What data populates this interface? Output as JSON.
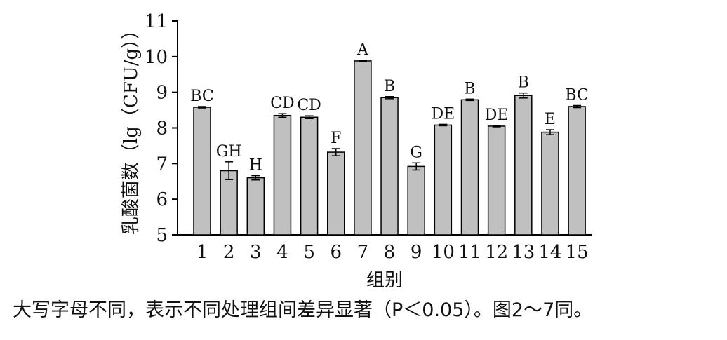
{
  "chart_data": {
    "type": "bar",
    "xlabel": "组别",
    "ylabel": "乳酸菌数（lg（CFU/g））",
    "ylim": [
      5,
      11
    ],
    "yticks": [
      5,
      6,
      7,
      8,
      9,
      10,
      11
    ],
    "categories": [
      "1",
      "2",
      "3",
      "4",
      "5",
      "6",
      "7",
      "8",
      "9",
      "10",
      "11",
      "12",
      "13",
      "14",
      "15"
    ],
    "values": [
      8.58,
      6.8,
      6.6,
      8.35,
      8.3,
      7.32,
      9.88,
      8.85,
      6.92,
      8.08,
      8.79,
      8.05,
      8.91,
      7.88,
      8.6
    ],
    "errors": [
      0.02,
      0.25,
      0.06,
      0.05,
      0.04,
      0.1,
      0.02,
      0.03,
      0.1,
      0.02,
      0.02,
      0.02,
      0.07,
      0.07,
      0.03
    ],
    "significance_labels": [
      "BC",
      "GH",
      "H",
      "CD",
      "CD",
      "F",
      "A",
      "B",
      "G",
      "DE",
      "B",
      "DE",
      "B",
      "E",
      "BC"
    ],
    "bar_color": "#c0c0c0",
    "grid": false
  },
  "caption": "大写字母不同，表示不同处理组间差异显著（P＜0.05）。图2～7同。"
}
